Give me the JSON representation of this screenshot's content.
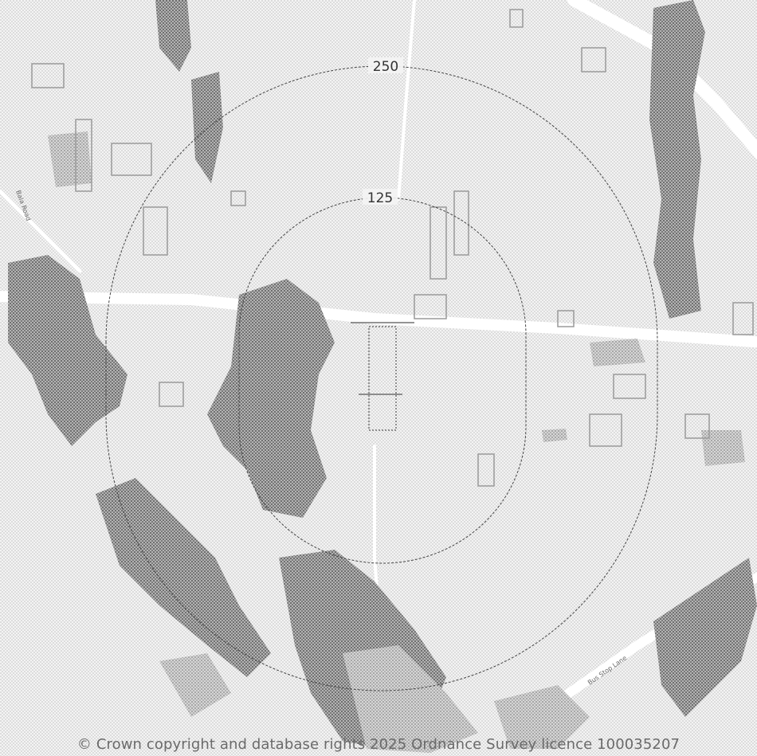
{
  "map": {
    "buffer_rings": [
      {
        "label": "250"
      },
      {
        "label": "125"
      }
    ],
    "road_labels": [
      "Bala Road",
      "Bus Stop Lane"
    ],
    "colors": {
      "background": "#f3f3f3",
      "building": "#8a8a8a",
      "road": "#ffffff",
      "ring_line": "#444444",
      "site_outline": "#555555"
    },
    "attribution": "© Crown copyright and database rights 2025 Ordnance Survey licence 100035207"
  }
}
